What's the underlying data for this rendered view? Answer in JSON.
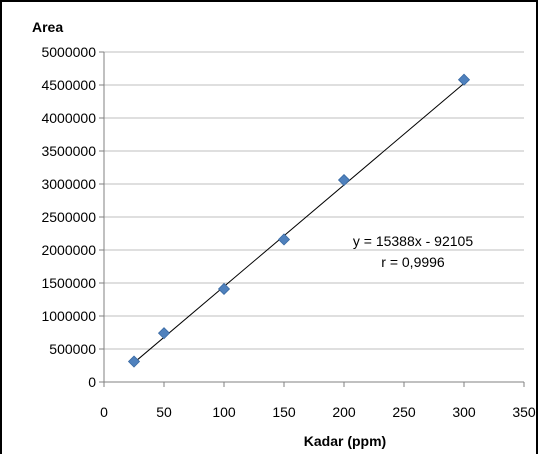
{
  "chart_data": {
    "type": "scatter",
    "title": "",
    "xlabel": "Kadar (ppm)",
    "ylabel": "Area",
    "xlim": [
      0,
      350
    ],
    "ylim": [
      0,
      5000000
    ],
    "x_ticks": [
      0,
      50,
      100,
      150,
      200,
      250,
      300,
      350
    ],
    "y_ticks": [
      0,
      500000,
      1000000,
      1500000,
      2000000,
      2500000,
      3000000,
      3500000,
      4000000,
      4500000,
      5000000
    ],
    "grid": "horizontal",
    "series": [
      {
        "color": "#4f81bd",
        "marker": "diamond",
        "points": [
          {
            "x": 25,
            "y": 310000
          },
          {
            "x": 50,
            "y": 740000
          },
          {
            "x": 100,
            "y": 1410000
          },
          {
            "x": 150,
            "y": 2160000
          },
          {
            "x": 200,
            "y": 3060000
          },
          {
            "x": 300,
            "y": 4580000
          }
        ]
      }
    ],
    "trendline": {
      "slope": 15388,
      "intercept": -92105,
      "x_range": [
        25,
        303
      ],
      "color": "#000000"
    },
    "annotations": {
      "equation": "y = 15388x - 92105",
      "r_value": "r = 0,9996"
    }
  }
}
